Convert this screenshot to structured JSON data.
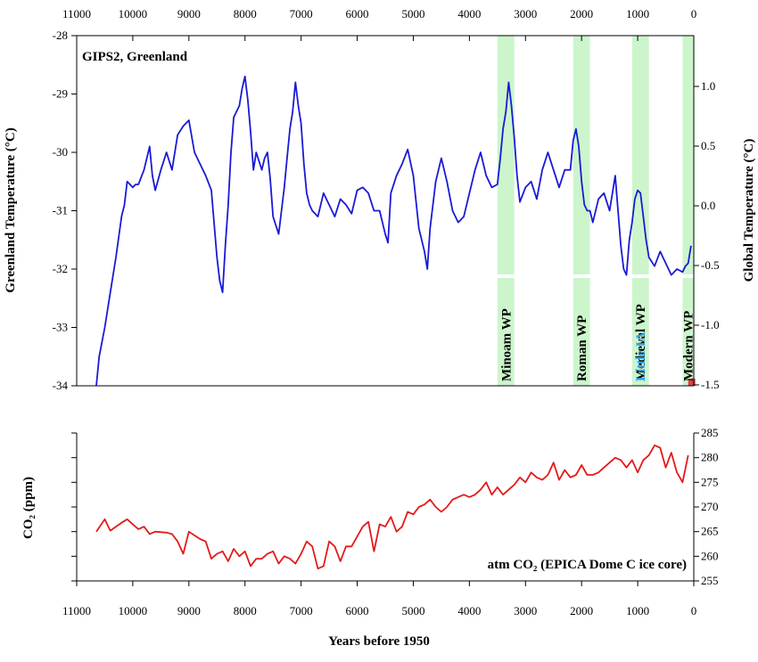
{
  "chart_data": [
    {
      "type": "line",
      "panel_label": "GIPS2, Greenland",
      "ylabel_left": "Greenland Temperature (°C)",
      "ylabel_right": "Global Temperature (°C)",
      "xlim": [
        11000,
        0
      ],
      "ylim": [
        -34,
        -28
      ],
      "right_ylim": [
        -1.5,
        1.0
      ],
      "x_ticks": [
        11000,
        10000,
        9000,
        8000,
        7000,
        6000,
        5000,
        4000,
        3000,
        2000,
        1000,
        0
      ],
      "x_tick_labels": [
        "11000",
        "10000",
        "9000",
        "8000",
        "7000",
        "6000",
        "5000",
        "4000",
        "3000",
        "2000",
        "1000",
        "0"
      ],
      "y_ticks": [
        -34,
        -33,
        -32,
        -31,
        -30,
        -29,
        -28
      ],
      "y_tick_labels": [
        "-34",
        "-33",
        "-32",
        "-31",
        "-30",
        "-29",
        "-28"
      ],
      "right_y_ticks": [
        -1.5,
        -1.0,
        -0.5,
        0.0,
        0.5,
        1.0
      ],
      "right_y_tick_labels": [
        "-1.5",
        "-1.0",
        "-0.5",
        "0.0",
        "0.5",
        "1.0"
      ],
      "series": [
        {
          "color": "#1a1ad6",
          "x": [
            10650,
            10600,
            10500,
            10400,
            10300,
            10200,
            10150,
            10100,
            10000,
            9950,
            9900,
            9800,
            9700,
            9650,
            9600,
            9500,
            9400,
            9300,
            9200,
            9100,
            9000,
            8900,
            8800,
            8700,
            8600,
            8500,
            8450,
            8400,
            8350,
            8300,
            8250,
            8200,
            8100,
            8050,
            8000,
            7950,
            7900,
            7850,
            7800,
            7700,
            7650,
            7600,
            7550,
            7500,
            7400,
            7300,
            7250,
            7200,
            7150,
            7100,
            7050,
            7000,
            6950,
            6900,
            6850,
            6800,
            6700,
            6600,
            6500,
            6400,
            6300,
            6200,
            6100,
            6000,
            5900,
            5800,
            5700,
            5600,
            5500,
            5450,
            5400,
            5300,
            5200,
            5100,
            5000,
            4900,
            4800,
            4750,
            4700,
            4600,
            4500,
            4400,
            4300,
            4200,
            4100,
            4000,
            3900,
            3800,
            3700,
            3600,
            3500,
            3450,
            3400,
            3350,
            3300,
            3250,
            3200,
            3150,
            3100,
            3000,
            2900,
            2800,
            2700,
            2600,
            2500,
            2400,
            2300,
            2200,
            2150,
            2100,
            2050,
            2000,
            1950,
            1900,
            1850,
            1800,
            1700,
            1600,
            1500,
            1400,
            1300,
            1250,
            1200,
            1150,
            1100,
            1050,
            1000,
            950,
            900,
            850,
            800,
            700,
            600,
            500,
            400,
            300,
            200,
            150,
            100,
            50
          ],
          "y": [
            -34.0,
            -33.5,
            -33.0,
            -32.4,
            -31.8,
            -31.1,
            -30.9,
            -30.5,
            -30.6,
            -30.55,
            -30.55,
            -30.3,
            -29.9,
            -30.4,
            -30.65,
            -30.3,
            -30.0,
            -30.3,
            -29.7,
            -29.55,
            -29.45,
            -30.0,
            -30.2,
            -30.4,
            -30.65,
            -31.8,
            -32.2,
            -32.4,
            -31.6,
            -30.9,
            -30.0,
            -29.4,
            -29.2,
            -28.9,
            -28.7,
            -29.1,
            -29.65,
            -30.3,
            -30.0,
            -30.3,
            -30.1,
            -30.0,
            -30.45,
            -31.1,
            -31.4,
            -30.6,
            -30.1,
            -29.6,
            -29.3,
            -28.8,
            -29.2,
            -29.5,
            -30.2,
            -30.7,
            -30.9,
            -31.0,
            -31.1,
            -30.7,
            -30.9,
            -31.1,
            -30.8,
            -30.9,
            -31.05,
            -30.65,
            -30.6,
            -30.7,
            -31.0,
            -31.0,
            -31.4,
            -31.55,
            -30.7,
            -30.4,
            -30.2,
            -29.95,
            -30.4,
            -31.3,
            -31.7,
            -32.0,
            -31.3,
            -30.5,
            -30.1,
            -30.5,
            -31.0,
            -31.2,
            -31.1,
            -30.7,
            -30.3,
            -30.0,
            -30.4,
            -30.6,
            -30.55,
            -30.1,
            -29.6,
            -29.3,
            -28.8,
            -29.2,
            -29.75,
            -30.4,
            -30.85,
            -30.6,
            -30.5,
            -30.8,
            -30.3,
            -30.0,
            -30.3,
            -30.6,
            -30.3,
            -30.3,
            -29.8,
            -29.6,
            -29.9,
            -30.5,
            -30.9,
            -31.0,
            -31.0,
            -31.2,
            -30.8,
            -30.7,
            -31.0,
            -30.4,
            -31.6,
            -32.0,
            -32.1,
            -31.5,
            -31.2,
            -30.8,
            -30.65,
            -30.7,
            -31.1,
            -31.5,
            -31.8,
            -31.95,
            -31.7,
            -31.9,
            -32.1,
            -32.0,
            -32.05,
            -31.95,
            -31.9,
            -31.6
          ]
        }
      ],
      "warm_periods": [
        {
          "label": "Minoam WP",
          "x_start": 3200,
          "x_end": 3500
        },
        {
          "label": "Roman WP",
          "x_start": 1850,
          "x_end": 2150
        },
        {
          "label": "Medieval WP",
          "x_start": 800,
          "x_end": 1100
        },
        {
          "label": "Modern WP",
          "x_start": 0,
          "x_end": 200
        }
      ],
      "annotation_little_ia": {
        "label": "Little IA",
        "color": "#2f9fe0"
      },
      "band_color": "#ccf5cc",
      "modern_marker_color": "#e04040"
    },
    {
      "type": "line",
      "panel_label": "atm CO₂ (EPICA Dome C ice core)",
      "ylabel": "CO₂ (ppm)",
      "xlabel": "Years before 1950",
      "xlim": [
        11000,
        0
      ],
      "ylim": [
        255,
        285
      ],
      "x_ticks": [
        11000,
        10000,
        9000,
        8000,
        7000,
        6000,
        5000,
        4000,
        3000,
        2000,
        1000,
        0
      ],
      "x_tick_labels": [
        "11000",
        "10000",
        "9000",
        "8000",
        "7000",
        "6000",
        "5000",
        "4000",
        "3000",
        "2000",
        "1000",
        "0"
      ],
      "y_ticks": [
        255,
        260,
        265,
        270,
        275,
        280,
        285
      ],
      "y_tick_labels": [
        "255",
        "260",
        "265",
        "270",
        "275",
        "280",
        "285"
      ],
      "series": [
        {
          "color": "#e41a1a",
          "x": [
            10650,
            10500,
            10400,
            10300,
            10200,
            10100,
            10000,
            9900,
            9800,
            9700,
            9600,
            9400,
            9300,
            9200,
            9100,
            9000,
            8800,
            8700,
            8600,
            8500,
            8400,
            8300,
            8200,
            8100,
            8000,
            7900,
            7800,
            7700,
            7600,
            7500,
            7400,
            7300,
            7200,
            7100,
            7000,
            6900,
            6800,
            6700,
            6600,
            6500,
            6400,
            6300,
            6200,
            6100,
            6000,
            5900,
            5800,
            5700,
            5600,
            5500,
            5400,
            5300,
            5200,
            5100,
            5000,
            4900,
            4800,
            4700,
            4600,
            4500,
            4400,
            4300,
            4200,
            4100,
            4000,
            3900,
            3800,
            3700,
            3600,
            3500,
            3400,
            3300,
            3200,
            3100,
            3000,
            2900,
            2800,
            2700,
            2600,
            2500,
            2400,
            2300,
            2200,
            2100,
            2000,
            1900,
            1800,
            1700,
            1600,
            1500,
            1400,
            1300,
            1200,
            1100,
            1000,
            900,
            800,
            700,
            600,
            500,
            400,
            300,
            200,
            100
          ],
          "y": [
            265.0,
            267.5,
            265.2,
            266.0,
            266.8,
            267.5,
            266.5,
            265.5,
            266.0,
            264.5,
            265.0,
            264.8,
            264.5,
            263.0,
            260.5,
            265.0,
            263.5,
            263.0,
            259.5,
            260.5,
            261.0,
            259.0,
            261.5,
            260.0,
            261.0,
            258.0,
            259.5,
            259.5,
            260.5,
            261.0,
            258.5,
            260.0,
            259.5,
            258.5,
            260.5,
            263.0,
            262.0,
            257.5,
            258.0,
            263.0,
            262.0,
            259.0,
            262.0,
            262.0,
            264.0,
            266.0,
            267.0,
            261.0,
            266.5,
            266.0,
            268.0,
            265.0,
            266.0,
            269.0,
            268.5,
            270.0,
            270.5,
            271.5,
            270.0,
            269.0,
            270.0,
            271.5,
            272.0,
            272.5,
            272.0,
            272.5,
            273.5,
            275.0,
            272.5,
            274.0,
            272.5,
            273.5,
            274.5,
            276.0,
            275.0,
            277.0,
            276.0,
            275.5,
            276.5,
            279.0,
            275.5,
            277.5,
            276.0,
            276.5,
            278.5,
            276.5,
            276.5,
            277.0,
            278.0,
            279.0,
            280.0,
            279.5,
            278.0,
            279.5,
            277.0,
            279.5,
            280.5,
            282.5,
            282.0,
            278.0,
            281.0,
            277.0,
            275.0,
            280.5
          ]
        }
      ]
    }
  ]
}
